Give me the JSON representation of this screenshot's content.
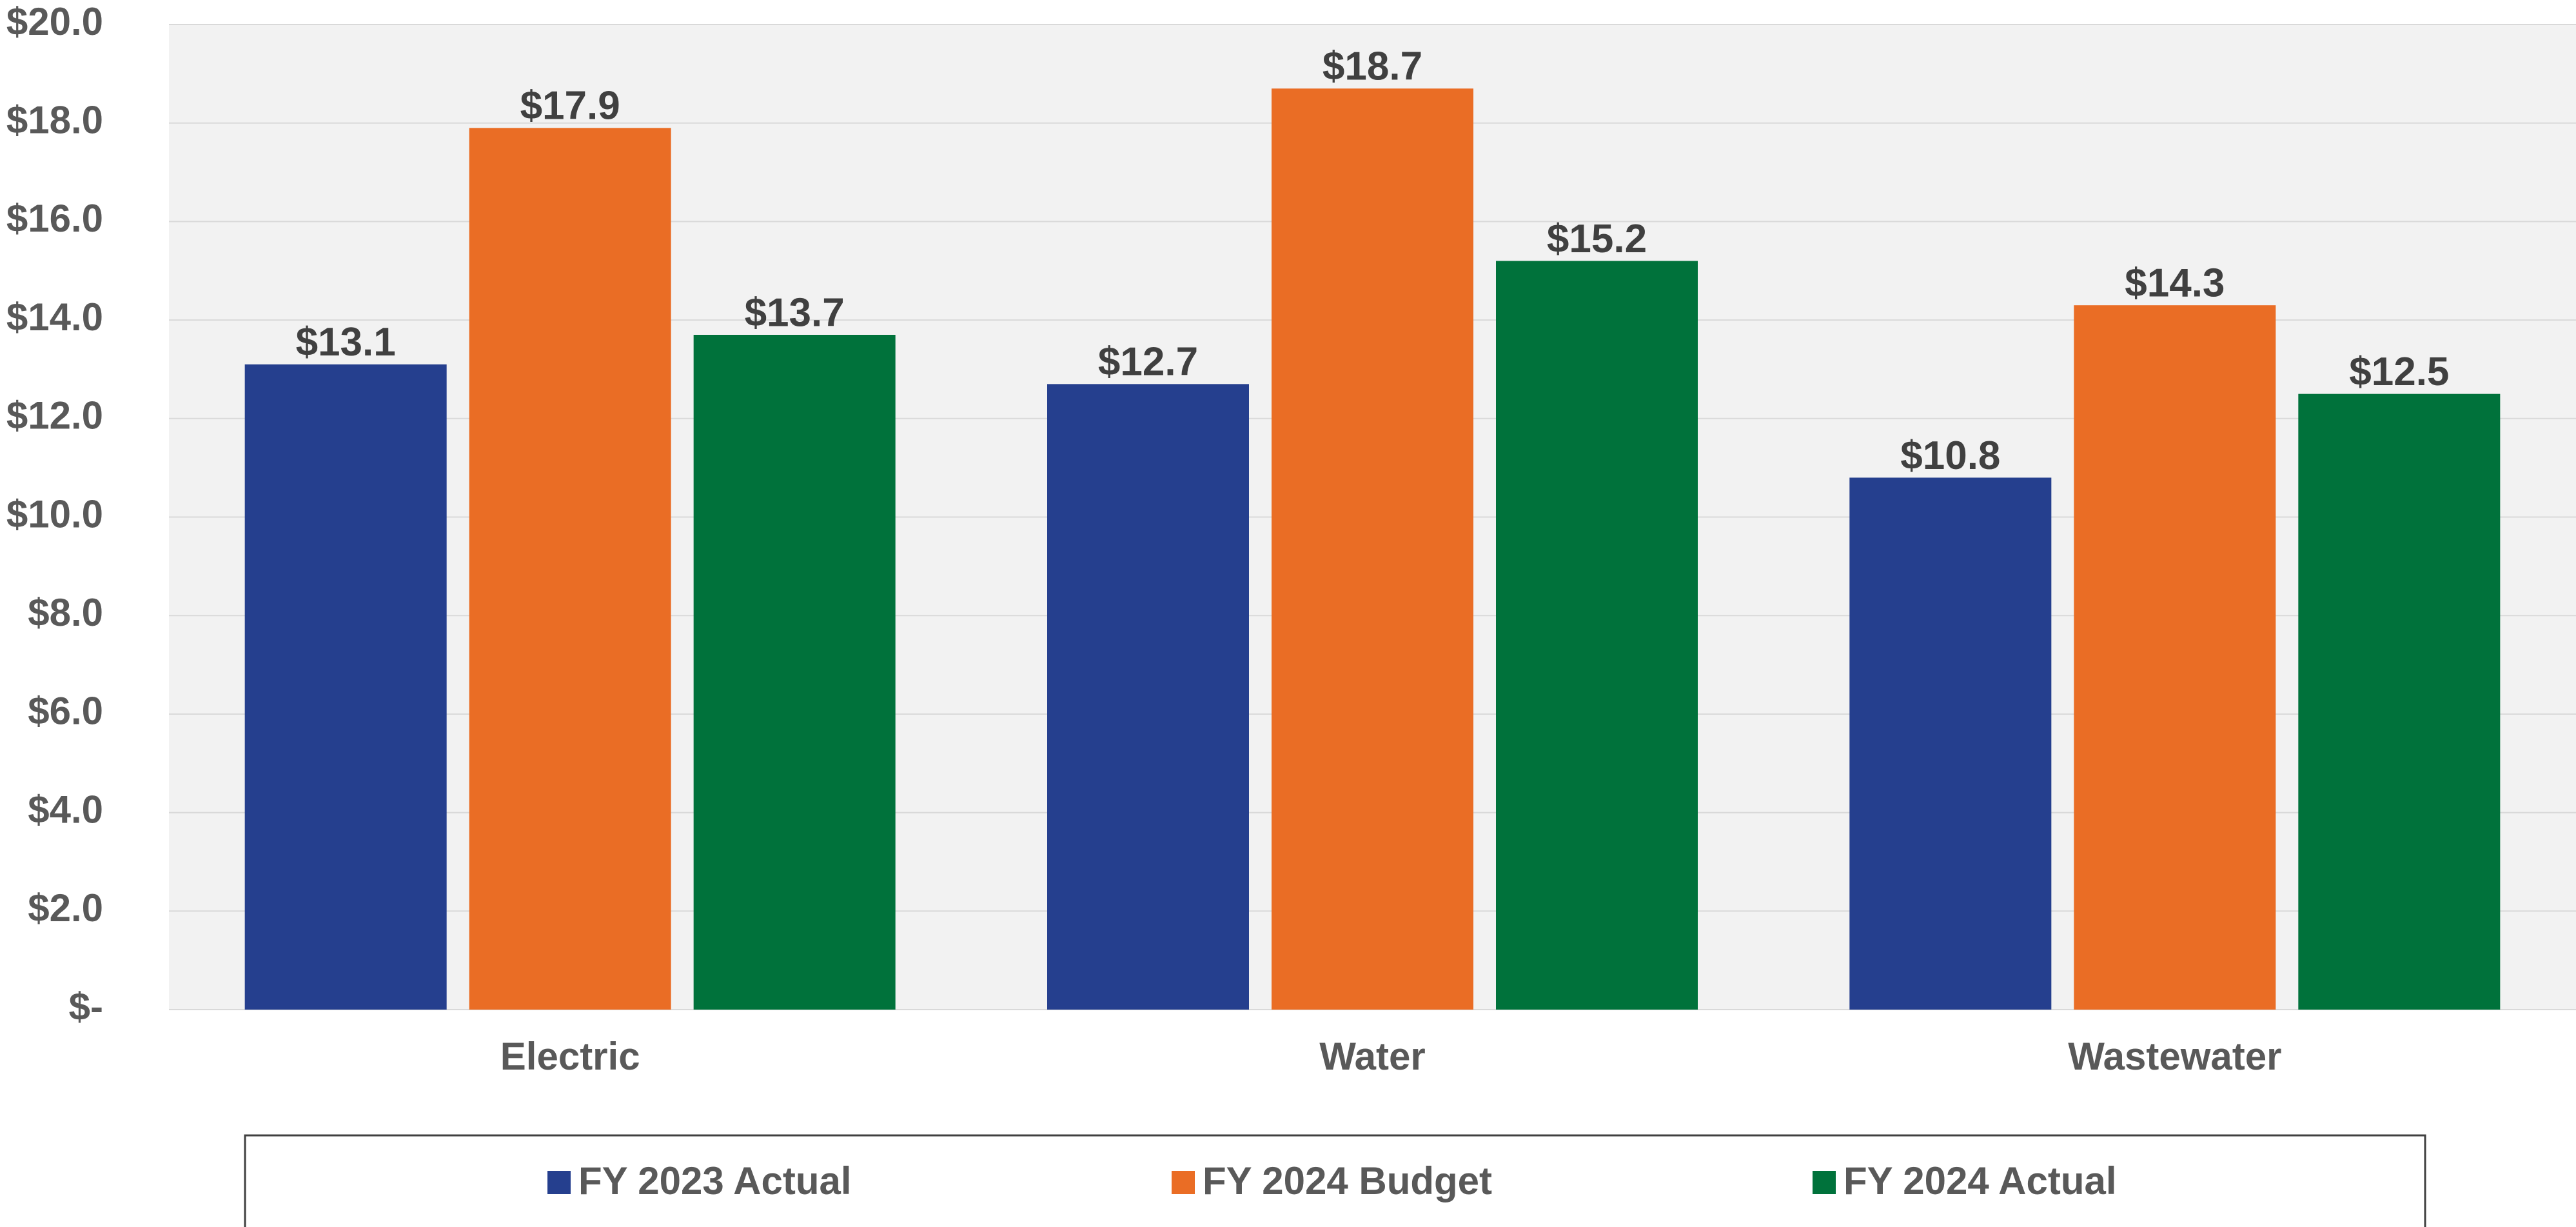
{
  "chart_data": {
    "type": "bar",
    "categories": [
      "Electric",
      "Water",
      "Wastewater"
    ],
    "series": [
      {
        "name": "FY 2023 Actual",
        "color": "#253f8e",
        "values": [
          13.1,
          12.7,
          10.8
        ],
        "value_labels": [
          "$13.1",
          "$12.7",
          "$10.8"
        ]
      },
      {
        "name": "FY 2024 Budget",
        "color": "#ea6d25",
        "values": [
          17.9,
          18.7,
          14.3
        ],
        "value_labels": [
          "$17.9",
          "$18.7",
          "$14.3"
        ]
      },
      {
        "name": "FY 2024 Actual",
        "color": "#00723b",
        "values": [
          13.7,
          15.2,
          12.5
        ],
        "value_labels": [
          "$13.7",
          "$15.2",
          "$12.5"
        ]
      }
    ],
    "ylim": [
      0,
      20
    ],
    "yticks": [
      {
        "value": 0,
        "label": "$-"
      },
      {
        "value": 2,
        "label": "$2.0"
      },
      {
        "value": 4,
        "label": "$4.0"
      },
      {
        "value": 6,
        "label": "$6.0"
      },
      {
        "value": 8,
        "label": "$8.0"
      },
      {
        "value": 10,
        "label": "$10.0"
      },
      {
        "value": 12,
        "label": "$12.0"
      },
      {
        "value": 14,
        "label": "$14.0"
      },
      {
        "value": 16,
        "label": "$16.0"
      },
      {
        "value": 18,
        "label": "$18.0"
      },
      {
        "value": 20,
        "label": "$20.0"
      }
    ],
    "grid": true,
    "legend": "bottom"
  }
}
